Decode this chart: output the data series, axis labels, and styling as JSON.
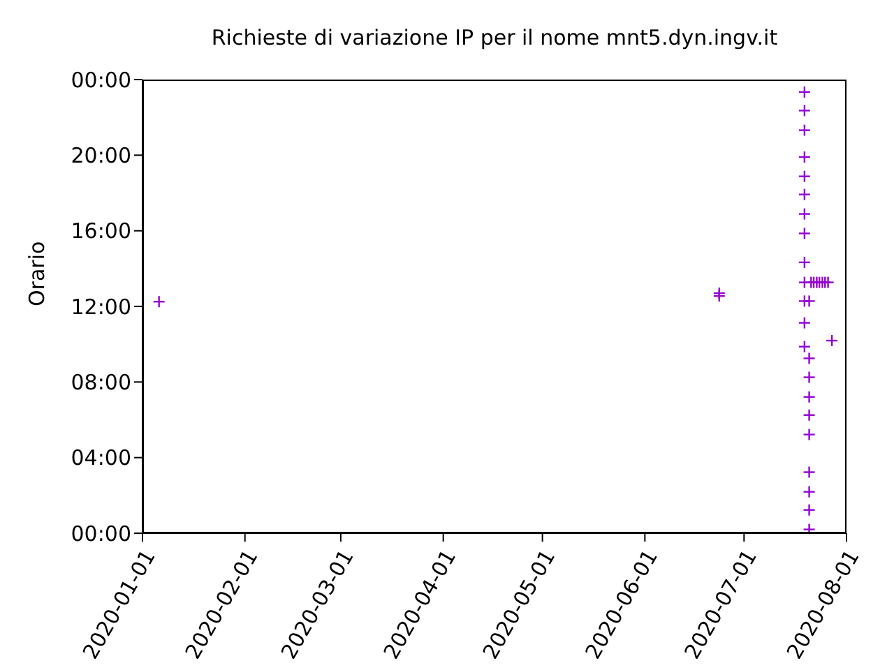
{
  "chart_data": {
    "type": "scatter",
    "title": "Richieste di variazione IP per il nome mnt5.dyn.ingv.it",
    "ylabel": "Orario",
    "x": [
      "2020-01-06",
      "2020-06-23T12:00",
      "2020-06-23T12:00",
      "2020-07-19T07:00",
      "2020-07-19T07:00",
      "2020-07-19T07:00",
      "2020-07-19T07:00",
      "2020-07-19T07:00",
      "2020-07-19T07:00",
      "2020-07-19T07:00",
      "2020-07-19T07:00",
      "2020-07-19T07:00",
      "2020-07-19T07:00",
      "2020-07-19T07:00",
      "2020-07-19T07:00",
      "2020-07-19T07:00",
      "2020-07-20T17:00",
      "2020-07-20T17:00",
      "2020-07-20T17:00",
      "2020-07-20T17:00",
      "2020-07-20T17:00",
      "2020-07-20T17:00",
      "2020-07-20T17:00",
      "2020-07-20T17:00",
      "2020-07-20T17:00",
      "2020-07-20T17:00",
      "2020-07-21T07:00",
      "2020-07-22T02:00",
      "2020-07-23T00:00",
      "2020-07-23T19:00",
      "2020-07-24T17:00",
      "2020-07-25T12:00",
      "2020-07-26T10:00",
      "2020-07-27T14:00"
    ],
    "values": [
      12.25,
      12.7,
      12.55,
      23.34,
      22.36,
      21.32,
      19.9,
      18.88,
      17.92,
      16.89,
      15.86,
      14.33,
      13.27,
      12.28,
      11.13,
      9.87,
      12.28,
      9.25,
      8.25,
      7.21,
      6.25,
      5.22,
      3.23,
      2.19,
      1.23,
      0.2,
      13.27,
      13.27,
      13.27,
      13.27,
      13.27,
      13.27,
      13.27,
      10.19
    ],
    "color": "#9400d3",
    "marker": "cross",
    "grid": false,
    "legend": false,
    "xlim": [
      "2020-01-01",
      "2020-08-01"
    ],
    "xticks": [
      "2020-01-01",
      "2020-02-01",
      "2020-03-01",
      "2020-04-01",
      "2020-05-01",
      "2020-06-01",
      "2020-07-01",
      "2020-08-01"
    ],
    "ylim": [
      0,
      24
    ],
    "yticks": [
      {
        "value": 0,
        "label": "00:00"
      },
      {
        "value": 4,
        "label": "04:00"
      },
      {
        "value": 8,
        "label": "08:00"
      },
      {
        "value": 12,
        "label": "12:00"
      },
      {
        "value": 16,
        "label": "16:00"
      },
      {
        "value": 20,
        "label": "20:00"
      },
      {
        "value": 24,
        "label": "00:00"
      }
    ]
  }
}
